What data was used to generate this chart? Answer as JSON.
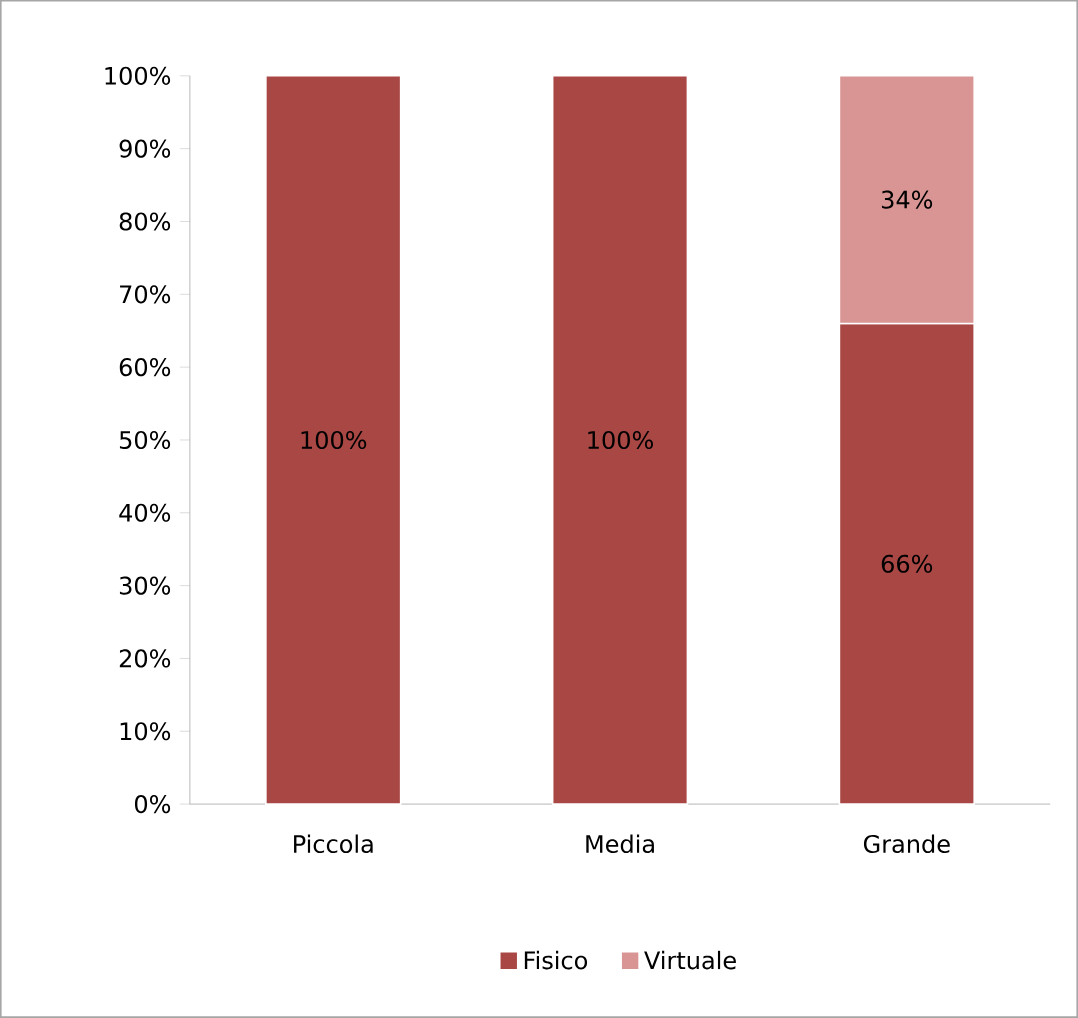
{
  "chart_data": {
    "type": "bar",
    "stacked": true,
    "categories": [
      "Piccola",
      "Media",
      "Grande"
    ],
    "series": [
      {
        "name": "Fisico",
        "color": "#a84744",
        "values": [
          100,
          100,
          66
        ],
        "value_labels": [
          "100%",
          "100%",
          "66%"
        ]
      },
      {
        "name": "Virtuale",
        "color": "#d99594",
        "values": [
          null,
          null,
          34
        ],
        "value_labels": [
          null,
          null,
          "34%"
        ]
      }
    ],
    "ylim": [
      0,
      100
    ],
    "yticks": [
      {
        "value": 0,
        "label": "0%"
      },
      {
        "value": 10,
        "label": "10%"
      },
      {
        "value": 20,
        "label": "20%"
      },
      {
        "value": 30,
        "label": "30%"
      },
      {
        "value": 40,
        "label": "40%"
      },
      {
        "value": 50,
        "label": "50%"
      },
      {
        "value": 60,
        "label": "60%"
      },
      {
        "value": 70,
        "label": "70%"
      },
      {
        "value": 80,
        "label": "80%"
      },
      {
        "value": 90,
        "label": "90%"
      },
      {
        "value": 100,
        "label": "100%"
      }
    ],
    "legend": "bottom"
  }
}
